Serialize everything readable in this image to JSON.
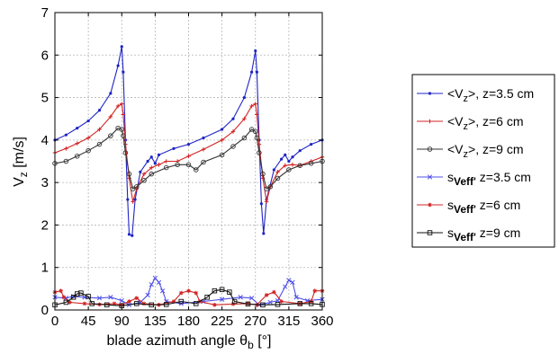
{
  "chart_data": {
    "type": "line",
    "xlabel": {
      "main": "blade azimuth angle θ",
      "sub": "b",
      "unit": " [°]"
    },
    "ylabel": {
      "main": "V",
      "sub": "z",
      "unit": " [m/s]"
    },
    "xlim": [
      0,
      360
    ],
    "ylim": [
      0,
      7
    ],
    "x_ticks": [
      "0",
      "45",
      "90",
      "135",
      "180",
      "225",
      "270",
      "315",
      "360"
    ],
    "y_ticks": [
      "0",
      "1",
      "2",
      "3",
      "4",
      "5",
      "6",
      "7"
    ],
    "grid": true,
    "legend_position": "right",
    "series": [
      {
        "label_prefix": "<V",
        "label_sub": "z",
        "label_suffix": ">, z=3.5 cm",
        "color": "#1f24c4",
        "marker": "dot",
        "points": [
          [
            0,
            4.0
          ],
          [
            15,
            4.12
          ],
          [
            30,
            4.28
          ],
          [
            45,
            4.45
          ],
          [
            60,
            4.7
          ],
          [
            75,
            5.1
          ],
          [
            85,
            5.75
          ],
          [
            90,
            6.2
          ],
          [
            92,
            5.6
          ],
          [
            95,
            4.0
          ],
          [
            98,
            2.6
          ],
          [
            100,
            1.78
          ],
          [
            104,
            1.75
          ],
          [
            108,
            2.6
          ],
          [
            115,
            3.25
          ],
          [
            125,
            3.5
          ],
          [
            130,
            3.6
          ],
          [
            135,
            3.45
          ],
          [
            140,
            3.65
          ],
          [
            160,
            3.8
          ],
          [
            180,
            3.9
          ],
          [
            200,
            4.05
          ],
          [
            225,
            4.25
          ],
          [
            240,
            4.5
          ],
          [
            255,
            5.0
          ],
          [
            265,
            5.6
          ],
          [
            270,
            6.1
          ],
          [
            272,
            5.6
          ],
          [
            275,
            4.0
          ],
          [
            278,
            2.5
          ],
          [
            281,
            1.8
          ],
          [
            285,
            2.6
          ],
          [
            295,
            3.3
          ],
          [
            305,
            3.55
          ],
          [
            310,
            3.65
          ],
          [
            315,
            3.5
          ],
          [
            320,
            3.6
          ],
          [
            330,
            3.75
          ],
          [
            345,
            3.9
          ],
          [
            360,
            4.0
          ]
        ]
      },
      {
        "label_prefix": "<V",
        "label_sub": "z",
        "label_suffix": ">, z=6 cm",
        "color": "#d22323",
        "marker": "plus",
        "points": [
          [
            0,
            3.7
          ],
          [
            15,
            3.8
          ],
          [
            30,
            3.92
          ],
          [
            45,
            4.05
          ],
          [
            60,
            4.25
          ],
          [
            75,
            4.55
          ],
          [
            85,
            4.8
          ],
          [
            90,
            4.85
          ],
          [
            92,
            4.6
          ],
          [
            95,
            3.9
          ],
          [
            100,
            3.1
          ],
          [
            105,
            2.55
          ],
          [
            110,
            2.85
          ],
          [
            120,
            3.2
          ],
          [
            130,
            3.35
          ],
          [
            140,
            3.42
          ],
          [
            150,
            3.5
          ],
          [
            165,
            3.5
          ],
          [
            180,
            3.62
          ],
          [
            200,
            3.78
          ],
          [
            225,
            4.0
          ],
          [
            240,
            4.2
          ],
          [
            255,
            4.5
          ],
          [
            265,
            4.8
          ],
          [
            270,
            4.85
          ],
          [
            272,
            4.6
          ],
          [
            275,
            3.9
          ],
          [
            280,
            3.1
          ],
          [
            285,
            2.55
          ],
          [
            290,
            2.9
          ],
          [
            300,
            3.25
          ],
          [
            310,
            3.4
          ],
          [
            320,
            3.42
          ],
          [
            330,
            3.4
          ],
          [
            345,
            3.5
          ],
          [
            360,
            3.6
          ]
        ]
      },
      {
        "label_prefix": "<V",
        "label_sub": "z",
        "label_suffix": ">, z=9 cm",
        "color": "#333333",
        "marker": "circle",
        "points": [
          [
            0,
            3.45
          ],
          [
            15,
            3.5
          ],
          [
            30,
            3.62
          ],
          [
            45,
            3.75
          ],
          [
            60,
            3.9
          ],
          [
            75,
            4.1
          ],
          [
            85,
            4.28
          ],
          [
            90,
            4.25
          ],
          [
            92,
            4.1
          ],
          [
            95,
            3.7
          ],
          [
            100,
            3.2
          ],
          [
            105,
            2.85
          ],
          [
            110,
            2.9
          ],
          [
            120,
            3.05
          ],
          [
            130,
            3.2
          ],
          [
            150,
            3.35
          ],
          [
            165,
            3.42
          ],
          [
            180,
            3.42
          ],
          [
            190,
            3.3
          ],
          [
            200,
            3.48
          ],
          [
            225,
            3.65
          ],
          [
            240,
            3.85
          ],
          [
            255,
            4.05
          ],
          [
            265,
            4.25
          ],
          [
            270,
            4.2
          ],
          [
            272,
            4.05
          ],
          [
            275,
            3.7
          ],
          [
            280,
            3.2
          ],
          [
            285,
            2.85
          ],
          [
            290,
            2.9
          ],
          [
            300,
            3.1
          ],
          [
            315,
            3.3
          ],
          [
            330,
            3.4
          ],
          [
            345,
            3.45
          ],
          [
            360,
            3.5
          ]
        ]
      },
      {
        "label_prefix": "s",
        "label_sub": "Veff'",
        "label_suffix": " z=3.5 cm",
        "color": "#4f4fe8",
        "marker": "x",
        "points": [
          [
            0,
            0.3
          ],
          [
            15,
            0.28
          ],
          [
            25,
            0.32
          ],
          [
            40,
            0.3
          ],
          [
            60,
            0.28
          ],
          [
            75,
            0.3
          ],
          [
            90,
            0.22
          ],
          [
            100,
            0.12
          ],
          [
            115,
            0.18
          ],
          [
            125,
            0.35
          ],
          [
            130,
            0.6
          ],
          [
            135,
            0.75
          ],
          [
            140,
            0.65
          ],
          [
            145,
            0.45
          ],
          [
            150,
            0.2
          ],
          [
            170,
            0.15
          ],
          [
            200,
            0.2
          ],
          [
            225,
            0.25
          ],
          [
            250,
            0.3
          ],
          [
            265,
            0.28
          ],
          [
            275,
            0.12
          ],
          [
            290,
            0.18
          ],
          [
            300,
            0.22
          ],
          [
            310,
            0.55
          ],
          [
            315,
            0.7
          ],
          [
            320,
            0.65
          ],
          [
            325,
            0.3
          ],
          [
            340,
            0.22
          ],
          [
            360,
            0.25
          ]
        ]
      },
      {
        "label_prefix": "s",
        "label_sub": "Veff'",
        "label_suffix": " z=6 cm",
        "color": "#d22323",
        "marker": "star",
        "points": [
          [
            0,
            0.42
          ],
          [
            8,
            0.45
          ],
          [
            12,
            0.3
          ],
          [
            20,
            0.18
          ],
          [
            40,
            0.15
          ],
          [
            60,
            0.13
          ],
          [
            80,
            0.15
          ],
          [
            90,
            0.12
          ],
          [
            100,
            0.2
          ],
          [
            110,
            0.28
          ],
          [
            120,
            0.15
          ],
          [
            140,
            0.12
          ],
          [
            160,
            0.2
          ],
          [
            170,
            0.4
          ],
          [
            180,
            0.45
          ],
          [
            190,
            0.4
          ],
          [
            195,
            0.2
          ],
          [
            215,
            0.12
          ],
          [
            240,
            0.14
          ],
          [
            260,
            0.15
          ],
          [
            272,
            0.12
          ],
          [
            285,
            0.35
          ],
          [
            295,
            0.42
          ],
          [
            305,
            0.2
          ],
          [
            330,
            0.15
          ],
          [
            345,
            0.2
          ],
          [
            350,
            0.45
          ],
          [
            360,
            0.45
          ]
        ]
      },
      {
        "label_prefix": "s",
        "label_sub": "Veff'",
        "label_suffix": " z=9 cm",
        "color": "#111111",
        "marker": "square",
        "points": [
          [
            0,
            0.12
          ],
          [
            15,
            0.18
          ],
          [
            25,
            0.3
          ],
          [
            30,
            0.38
          ],
          [
            35,
            0.4
          ],
          [
            45,
            0.32
          ],
          [
            50,
            0.15
          ],
          [
            70,
            0.12
          ],
          [
            90,
            0.1
          ],
          [
            110,
            0.15
          ],
          [
            130,
            0.12
          ],
          [
            150,
            0.13
          ],
          [
            170,
            0.2
          ],
          [
            190,
            0.15
          ],
          [
            205,
            0.3
          ],
          [
            215,
            0.45
          ],
          [
            225,
            0.48
          ],
          [
            235,
            0.42
          ],
          [
            242,
            0.2
          ],
          [
            260,
            0.14
          ],
          [
            280,
            0.12
          ],
          [
            300,
            0.13
          ],
          [
            330,
            0.15
          ],
          [
            345,
            0.15
          ],
          [
            360,
            0.13
          ]
        ]
      }
    ]
  }
}
